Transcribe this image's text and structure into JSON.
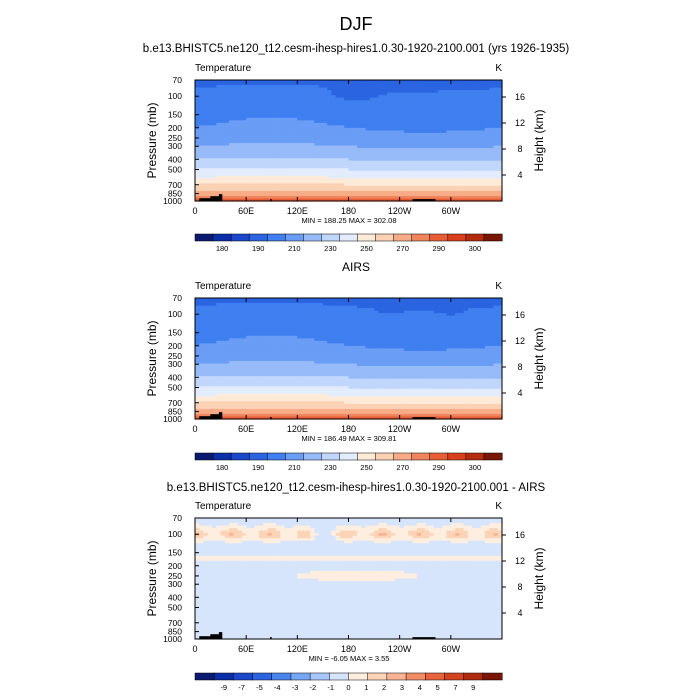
{
  "figure_title": "DJF",
  "chart_data": [
    {
      "type": "heatmap",
      "title": "b.e13.BHISTC5.ne120_t12.cesm-ihesp-hires1.0.30-1920-2100.001 (yrs 1926-1935)",
      "left_label": "Temperature",
      "units": "K",
      "ylabel": "Pressure (mb)",
      "y2label": "Height (km)",
      "xlabel": "",
      "x_ticks": [
        "0",
        "60E",
        "120E",
        "180",
        "120W",
        "60W"
      ],
      "x_tick_values": [
        0,
        60,
        120,
        180,
        240,
        300
      ],
      "xlim": [
        0,
        360
      ],
      "y_ticks": [
        "70",
        "100",
        "150",
        "200",
        "250",
        "300",
        "400",
        "500",
        "700",
        "850",
        "1000"
      ],
      "y_tick_values": [
        70,
        100,
        150,
        200,
        250,
        300,
        400,
        500,
        700,
        850,
        1000
      ],
      "ylim": [
        1000,
        70
      ],
      "y2_ticks": [
        "4",
        "8",
        "12",
        "16"
      ],
      "y2_tick_values": [
        4,
        8,
        12,
        16
      ],
      "stats": "MIN = 188.25   MAX = 302.08",
      "colorbar_labels": [
        "180",
        "190",
        "210",
        "230",
        "250",
        "270",
        "290",
        "300"
      ],
      "levels": [
        175,
        180,
        185,
        190,
        200,
        210,
        220,
        230,
        240,
        250,
        260,
        270,
        280,
        285,
        290,
        295,
        300
      ],
      "colors": [
        "#0a1a6e",
        "#0b2fa8",
        "#1a47cc",
        "#2a64e0",
        "#3f7ff0",
        "#6a9df5",
        "#97bbf8",
        "#c0d6fb",
        "#e2ecfd",
        "#fdebd8",
        "#fbd1b4",
        "#f7ac87",
        "#f0845c",
        "#e85d36",
        "#d8401c",
        "#b52b0e",
        "#7a1606"
      ],
      "min": 188.25,
      "max": 302.08
    },
    {
      "type": "heatmap",
      "title": "AIRS",
      "left_label": "Temperature",
      "units": "K",
      "ylabel": "Pressure (mb)",
      "y2label": "Height (km)",
      "xlabel": "",
      "x_ticks": [
        "0",
        "60E",
        "120E",
        "180",
        "120W",
        "60W"
      ],
      "x_tick_values": [
        0,
        60,
        120,
        180,
        240,
        300
      ],
      "xlim": [
        0,
        360
      ],
      "y_ticks": [
        "70",
        "100",
        "150",
        "200",
        "250",
        "300",
        "400",
        "500",
        "700",
        "850",
        "1000"
      ],
      "y_tick_values": [
        70,
        100,
        150,
        200,
        250,
        300,
        400,
        500,
        700,
        850,
        1000
      ],
      "ylim": [
        1000,
        70
      ],
      "y2_ticks": [
        "4",
        "8",
        "12",
        "16"
      ],
      "y2_tick_values": [
        4,
        8,
        12,
        16
      ],
      "stats": "MIN = 186.49   MAX = 309.81",
      "colorbar_labels": [
        "180",
        "190",
        "210",
        "230",
        "250",
        "270",
        "290",
        "300"
      ],
      "levels": [
        175,
        180,
        185,
        190,
        200,
        210,
        220,
        230,
        240,
        250,
        260,
        270,
        280,
        285,
        290,
        295,
        300
      ],
      "colors": [
        "#0a1a6e",
        "#0b2fa8",
        "#1a47cc",
        "#2a64e0",
        "#3f7ff0",
        "#6a9df5",
        "#97bbf8",
        "#c0d6fb",
        "#e2ecfd",
        "#fdebd8",
        "#fbd1b4",
        "#f7ac87",
        "#f0845c",
        "#e85d36",
        "#d8401c",
        "#b52b0e",
        "#7a1606"
      ],
      "min": 186.49,
      "max": 309.81
    },
    {
      "type": "heatmap",
      "title": "b.e13.BHISTC5.ne120_t12.cesm-ihesp-hires1.0.30-1920-2100.001 - AIRS",
      "left_label": "Temperature",
      "units": "K",
      "ylabel": "Pressure (mb)",
      "y2label": "Height (km)",
      "xlabel": "",
      "x_ticks": [
        "0",
        "60E",
        "120E",
        "180",
        "120W",
        "60W"
      ],
      "x_tick_values": [
        0,
        60,
        120,
        180,
        240,
        300
      ],
      "xlim": [
        0,
        360
      ],
      "y_ticks": [
        "70",
        "100",
        "150",
        "200",
        "250",
        "300",
        "400",
        "500",
        "700",
        "850",
        "1000"
      ],
      "y_tick_values": [
        70,
        100,
        150,
        200,
        250,
        300,
        400,
        500,
        700,
        850,
        1000
      ],
      "ylim": [
        1000,
        70
      ],
      "y2_ticks": [
        "4",
        "8",
        "12",
        "16"
      ],
      "y2_tick_values": [
        4,
        8,
        12,
        16
      ],
      "stats": "MIN = -6.05   MAX =  3.55",
      "colorbar_labels": [
        "-9",
        "-7",
        "-5",
        "-4",
        "-3",
        "-2",
        "-1",
        "0",
        "1",
        "2",
        "3",
        "4",
        "5",
        "7",
        "9"
      ],
      "levels": [
        -10,
        -9,
        -7,
        -5,
        -4,
        -3,
        -2,
        -1,
        0,
        1,
        2,
        3,
        4,
        5,
        7,
        9,
        10
      ],
      "colors": [
        "#0a1a6e",
        "#0b2fa8",
        "#1a47cc",
        "#2a64e0",
        "#4a85ee",
        "#78a6f4",
        "#a8c6f9",
        "#d6e5fc",
        "#fdeee0",
        "#fbd4b8",
        "#f7b393",
        "#f08c66",
        "#e6633e",
        "#d4441f",
        "#b02a0d",
        "#7a1606"
      ],
      "min": -6.05,
      "max": 3.55
    }
  ]
}
